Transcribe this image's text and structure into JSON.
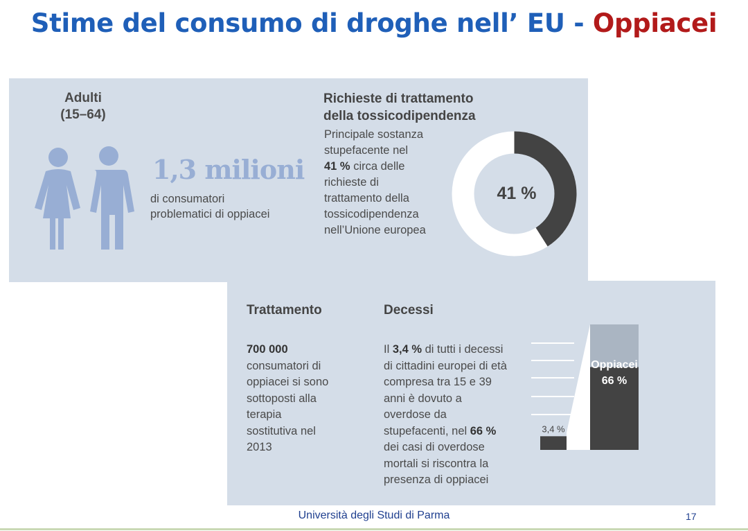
{
  "slide": {
    "title_main": "Stime del consumo di droghe nell’ EU - ",
    "title_accent": "Oppiacei",
    "footer": "Università degli Studi di Parma",
    "page_number": "17"
  },
  "adults": {
    "label_line1": "Adulti",
    "label_line2": "(15–64)",
    "big_number": "1,3 milioni",
    "desc_line1": "di consumatori",
    "desc_line2": "problematici di oppiacei"
  },
  "treatment_requests": {
    "heading_line1": "Richieste di trattamento",
    "heading_line2": "della tossicodipendenza",
    "desc_line1": "Principale sostanza",
    "desc_line2": "stupefacente nel",
    "desc_bold": "41 %",
    "desc_line3": " circa delle",
    "desc_line4": "richieste di",
    "desc_line5": "trattamento della",
    "desc_line6": "tossicodipendenza",
    "desc_line7": "nell’Unione europea"
  },
  "treatment": {
    "heading": "Trattamento",
    "number": "700 000",
    "lines": [
      "consumatori di",
      "oppiacei si sono",
      "sottoposti alla",
      "terapia",
      "sostitutiva nel",
      "2013"
    ]
  },
  "deaths": {
    "heading": "Decessi",
    "p1_pre": "Il ",
    "p1_bold": "3,4 %",
    "p1_post": " di tutti i decessi",
    "lines_mid": [
      "di cittadini europei di età",
      "compresa tra 15 e 39",
      "anni è dovuto a",
      "overdose da"
    ],
    "p2_pre": "stupefacenti, nel ",
    "p2_bold": "66 %",
    "lines_end": [
      "dei casi di overdose",
      "mortali si riscontra la",
      "presenza di oppiacei"
    ]
  },
  "colors": {
    "panel": "#d4dde8",
    "dark": "#434343",
    "light_bar": "#aab5c2",
    "person": "#98aed4",
    "title_blue": "#1f5fb8",
    "title_red": "#b21a1a"
  },
  "chart_data": [
    {
      "type": "pie",
      "values": [
        41,
        59
      ],
      "center_label": "41 %"
    },
    {
      "type": "bar",
      "series": [
        {
          "values": [
            3.4
          ],
          "label": "3,4 %"
        },
        {
          "values": [
            66
          ],
          "label_line1": "Oppiacei",
          "label_line2": "66 %"
        }
      ],
      "ylim": [
        0,
        100
      ]
    }
  ]
}
